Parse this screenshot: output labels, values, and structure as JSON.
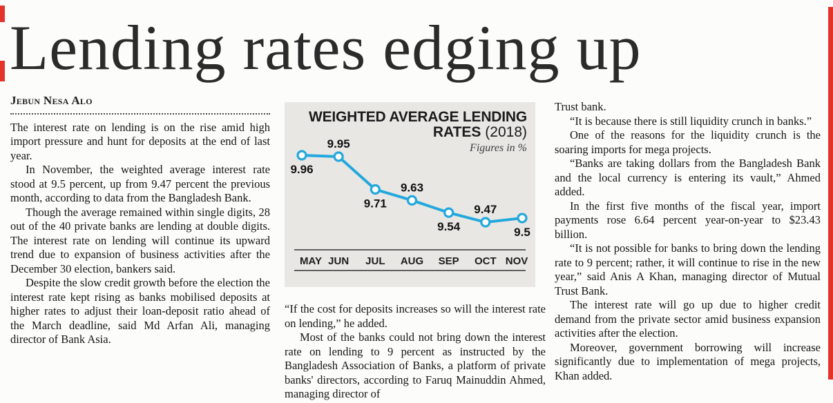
{
  "page": {
    "headline": "Lending rates edging up",
    "byline": "Jebun Nesa Alo"
  },
  "article": {
    "col1": [
      "The interest rate on lending is on the rise amid high import pressure and hunt for deposits at the end of last year.",
      "In November, the weighted average interest rate stood at 9.5 percent, up from 9.47 percent the previous month, according to data from the Bangladesh Bank.",
      "Though the average remained within single digits, 28 out of the 40 private banks are lending at double digits. The interest rate on lending will continue its upward trend due to expansion of business activities after the December 30 election, bankers said.",
      "Despite the slow credit growth before the election the interest rate kept rising as banks mobilised deposits at higher rates to adjust their loan-deposit ratio ahead of the March deadline, said Md Arfan Ali, managing director of Bank Asia."
    ],
    "col2": [
      "“If the cost for deposits increases so will the interest rate on lending,” he added.",
      "Most of the banks could not bring down the interest rate on lending to 9 percent as instructed by the Bangladesh Association of Banks, a platform of private banks' directors, according to Faruq Mainuddin Ahmed, managing director of"
    ],
    "col3": [
      "Trust bank.",
      "“It is because there is still liquidity crunch in banks.”",
      "One of the reasons for the liquidity crunch is the soaring imports for mega projects.",
      "“Banks are taking dollars from the Bangladesh Bank and the local currency is entering its vault,” Ahmed added.",
      "In the first five months of the fiscal year, import payments rose 6.64 percent year-on-year to $23.43 billion.",
      "“It is not possible for banks to bring down the lending rate to 9 percent; rather, it will continue to rise in the new year,” said Anis A Khan, managing director of Mutual Trust Bank.",
      "The interest rate will go up due to higher credit demand from the private sector amid business expansion activities after the election.",
      "Moreover, government borrowing will increase significantly due to implementation of mega projects, Khan added."
    ]
  },
  "chart_data": {
    "type": "line",
    "title": "WEIGHTED AVERAGE LENDING RATES (2018)",
    "title_line1": "WEIGHTED AVERAGE LENDING",
    "title_line2_bold": "RATES",
    "title_line2_normal": "(2018)",
    "subtitle": "Figures in %",
    "categories": [
      "MAY",
      "JUN",
      "JUL",
      "AUG",
      "SEP",
      "OCT",
      "NOV"
    ],
    "values": [
      9.96,
      9.95,
      9.71,
      9.63,
      9.54,
      9.47,
      9.5
    ],
    "ylim": [
      9.4,
      10.0
    ],
    "grid": false,
    "legend": "none",
    "data_labels": true,
    "line_color": "#23a8dd",
    "marker": "circle-open",
    "background": "#e8e7e4"
  }
}
